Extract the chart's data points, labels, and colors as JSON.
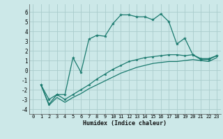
{
  "xlabel": "Humidex (Indice chaleur)",
  "bg_color": "#cce8e8",
  "grid_color": "#aacccc",
  "line_color": "#1a7a6e",
  "xlim": [
    -0.5,
    23.5
  ],
  "ylim": [
    -4.5,
    6.8
  ],
  "xticks": [
    0,
    1,
    2,
    3,
    4,
    5,
    6,
    7,
    8,
    9,
    10,
    11,
    12,
    13,
    14,
    15,
    16,
    17,
    18,
    19,
    20,
    21,
    22,
    23
  ],
  "yticks": [
    -4,
    -3,
    -2,
    -1,
    0,
    1,
    2,
    3,
    4,
    5,
    6
  ],
  "series1_x": [
    1,
    2,
    3,
    4,
    5,
    6,
    7,
    8,
    9,
    10,
    11,
    12,
    13,
    14,
    15,
    16,
    17,
    18,
    19,
    20,
    21,
    22,
    23
  ],
  "series1_y": [
    -1.5,
    -3.0,
    -2.5,
    -2.5,
    1.3,
    -0.2,
    3.2,
    3.6,
    3.5,
    4.8,
    5.7,
    5.7,
    5.5,
    5.5,
    5.2,
    5.8,
    5.0,
    2.7,
    3.3,
    1.6,
    1.1,
    1.1,
    1.5
  ],
  "series2_x": [
    1,
    2,
    3,
    4,
    5,
    6,
    7,
    8,
    9,
    10,
    11,
    12,
    13,
    14,
    15,
    16,
    17,
    18,
    19,
    20,
    21,
    22,
    23
  ],
  "series2_y": [
    -1.5,
    -3.5,
    -2.5,
    -3.0,
    -2.5,
    -2.0,
    -1.5,
    -0.9,
    -0.4,
    0.1,
    0.5,
    0.9,
    1.1,
    1.3,
    1.4,
    1.5,
    1.6,
    1.6,
    1.5,
    1.6,
    1.2,
    1.2,
    1.5
  ],
  "series3_x": [
    1,
    2,
    3,
    4,
    5,
    6,
    7,
    8,
    9,
    10,
    11,
    12,
    13,
    14,
    15,
    16,
    17,
    18,
    19,
    20,
    21,
    22,
    23
  ],
  "series3_y": [
    -1.5,
    -3.6,
    -2.8,
    -3.3,
    -2.8,
    -2.4,
    -1.9,
    -1.5,
    -1.1,
    -0.7,
    -0.3,
    0.0,
    0.3,
    0.5,
    0.7,
    0.8,
    0.9,
    0.9,
    1.0,
    1.1,
    1.0,
    0.9,
    1.3
  ]
}
